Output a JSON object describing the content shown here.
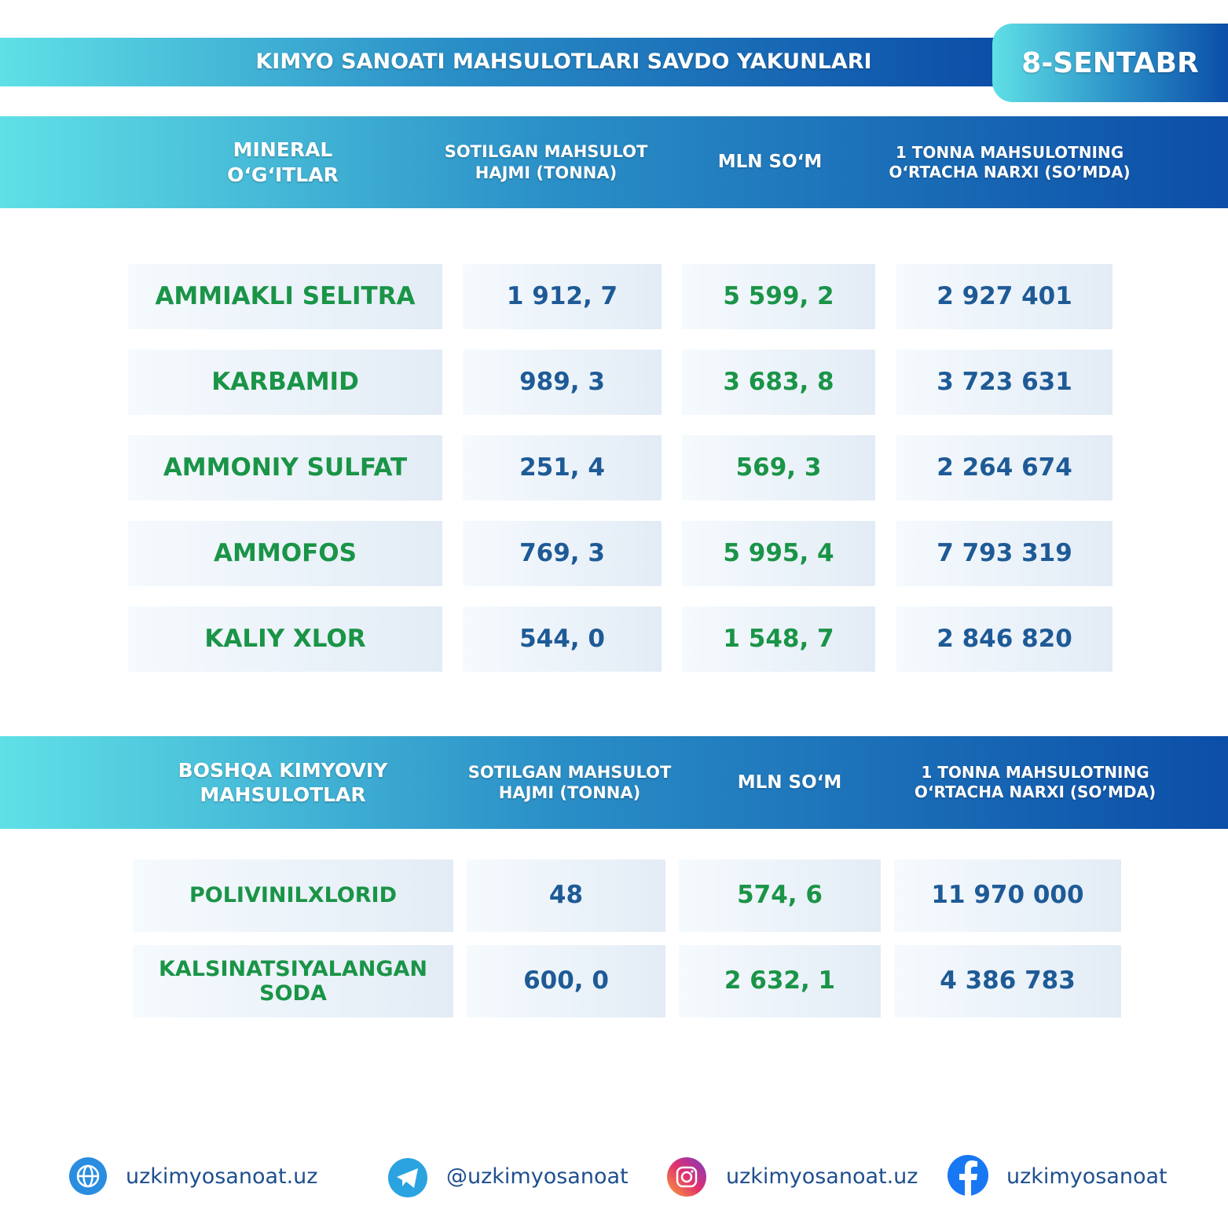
{
  "header": {
    "title": "KIMYO SANOATI MAHSULOTLARI SAVDO YAKUNLARI",
    "date": "8-SENTABR"
  },
  "sections": [
    {
      "headers": [
        "MINERAL O‘G‘ITLAR",
        "SOTILGAN MAHSULOT HAJMI (TONNA)",
        "MLN SO‘M",
        "1 TONNA MAHSULOTNING O‘RTACHA NARXI (SO’MDA)"
      ],
      "rows": [
        [
          "AMMIAKLI SELITRA",
          "1 912, 7",
          "5 599, 2",
          "2 927 401"
        ],
        [
          "KARBAMID",
          "989, 3",
          "3 683, 8",
          "3 723 631"
        ],
        [
          "AMMONIY SULFAT",
          "251, 4",
          "569, 3",
          "2 264 674"
        ],
        [
          "AMMOFOS",
          "769, 3",
          "5 995, 4",
          "7 793 319"
        ],
        [
          "KALIY XLOR",
          "544, 0",
          "1 548, 7",
          "2 846 820"
        ]
      ]
    },
    {
      "headers": [
        "BOSHQA KIMYOVIY MAHSULOTLAR",
        "SOTILGAN MAHSULOT HAJMI (TONNA)",
        "MLN SO‘M",
        "1 TONNA MAHSULOTNING O‘RTACHA NARXI (SO’MDA)"
      ],
      "rows": [
        [
          "POLIVINILXLORID",
          "48",
          "574, 6",
          "11 970 000"
        ],
        [
          "KALSINATSIYALANGAN SODA",
          "600, 0",
          "2 632, 1",
          "4 386 783"
        ]
      ]
    }
  ],
  "footer": [
    "uzkimyosanoat.uz",
    "@uzkimyosanoat",
    "uzkimyosanoat.uz",
    "uzkimyosanoat"
  ]
}
